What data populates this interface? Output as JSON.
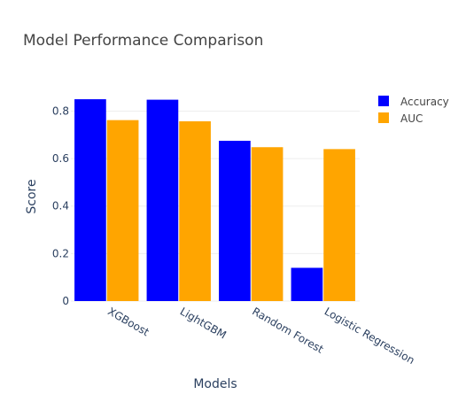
{
  "chart_data": {
    "type": "bar",
    "title": "Model Performance Comparison",
    "xlabel": "Models",
    "ylabel": "Score",
    "categories": [
      "XGBoost",
      "LightGBM",
      "Random Forest",
      "Logistic Regression"
    ],
    "series": [
      {
        "name": "Accuracy",
        "color": "#0000ff",
        "values": [
          0.85,
          0.848,
          0.675,
          0.14
        ]
      },
      {
        "name": "AUC",
        "color": "#ffa500",
        "values": [
          0.762,
          0.757,
          0.648,
          0.64
        ]
      }
    ],
    "y_ticks": [
      0,
      0.2,
      0.4,
      0.6,
      0.8
    ],
    "y_tick_labels": [
      "0",
      "0.2",
      "0.4",
      "0.6",
      "0.8"
    ],
    "ylim": [
      0,
      0.895
    ],
    "grid": true,
    "legend_position": "top-right",
    "x_tick_rotation": 30,
    "colors": {
      "title": "#444444",
      "axis_text": "#2a3f5f",
      "gridline": "#eeeeee",
      "legend_text": "#444444"
    }
  }
}
